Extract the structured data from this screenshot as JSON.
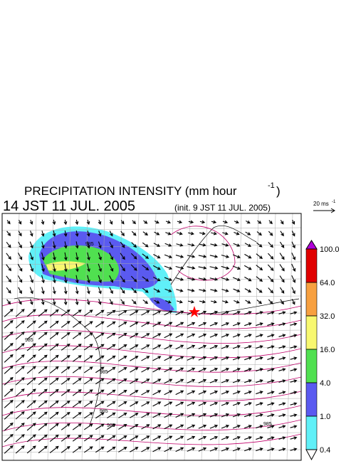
{
  "header": {
    "title": "PRECIPITATION INTENSITY (mm hour",
    "title_superscript": "-1",
    "title_close": ")",
    "time": "14 JST 11 JUL. 2005",
    "init": "(init. 9 JST 11 JUL. 2005)",
    "vector_scale": "20 ms",
    "vector_scale_superscript": "-1"
  },
  "colorbar": {
    "levels": [
      {
        "value": 100,
        "label": "100.0"
      },
      {
        "value": 64,
        "label": "64.0"
      },
      {
        "value": 32,
        "label": "32.0"
      },
      {
        "value": 16,
        "label": "16.0"
      },
      {
        "value": 4,
        "label": "4.0"
      },
      {
        "value": 1,
        "label": "1.0"
      },
      {
        "value": 0.4,
        "label": "0.4"
      }
    ],
    "colors": [
      "#e00000",
      "#f7a040",
      "#f8f870",
      "#50e050",
      "#5a5af0",
      "#60f0f8"
    ],
    "over_color": "#b000d8",
    "under_color": "#ffffff"
  },
  "map": {
    "contour_labels": [
      "985",
      "985",
      "985",
      "985",
      "985",
      "985"
    ]
  }
}
